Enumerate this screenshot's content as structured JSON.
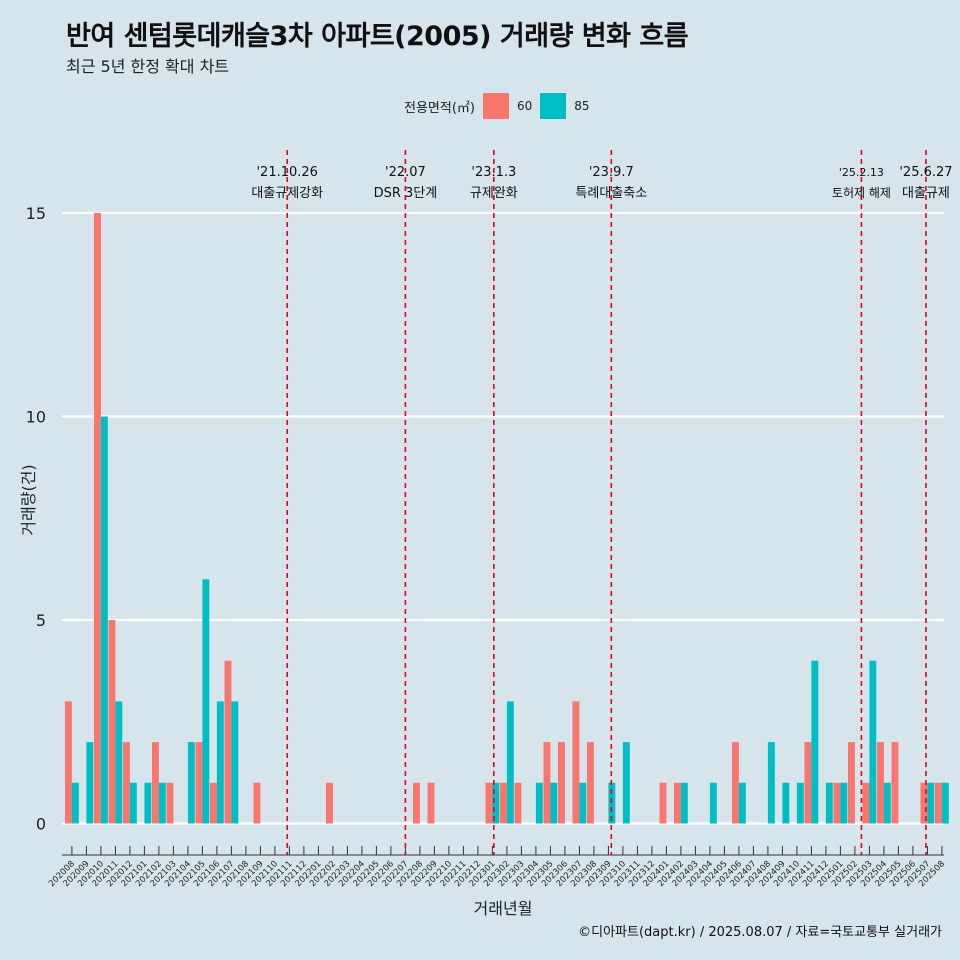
{
  "header": {
    "title": "반여 센텀롯데캐슬3차 아파트(2005) 거래량 변화 흐름",
    "subtitle": "최근 5년 한정 확대 차트"
  },
  "legend": {
    "title": "전용면적(㎡)",
    "items": [
      {
        "label": "60",
        "color": "#F8766D"
      },
      {
        "label": "85",
        "color": "#00BFC4"
      }
    ]
  },
  "footer": {
    "credit": "©디아파트(dapt.kr) / 2025.08.07 / 자료=국토교통부 실거래가"
  },
  "chart_data": {
    "type": "bar",
    "title": "반여 센텀롯데캐슬3차 아파트(2005) 거래량 변화 흐름",
    "xlabel": "거래년월",
    "ylabel": "거래량(건)",
    "ylim": [
      0,
      15
    ],
    "yticks": [
      0,
      5,
      10,
      15
    ],
    "categories": [
      "202008",
      "202009",
      "202010",
      "202011",
      "202012",
      "202101",
      "202102",
      "202103",
      "202104",
      "202105",
      "202106",
      "202107",
      "202108",
      "202109",
      "202110",
      "202111",
      "202112",
      "202201",
      "202202",
      "202203",
      "202204",
      "202205",
      "202206",
      "202207",
      "202208",
      "202209",
      "202210",
      "202211",
      "202212",
      "202301",
      "202302",
      "202303",
      "202304",
      "202305",
      "202306",
      "202307",
      "202308",
      "202309",
      "202310",
      "202311",
      "202312",
      "202401",
      "202402",
      "202403",
      "202404",
      "202405",
      "202406",
      "202407",
      "202408",
      "202409",
      "202410",
      "202411",
      "202412",
      "202501",
      "202502",
      "202503",
      "202504",
      "202505",
      "202506",
      "202507",
      "202508"
    ],
    "series": [
      {
        "name": "60",
        "color": "#F8766D",
        "values": [
          3,
          0,
          15,
          5,
          2,
          0,
          2,
          1,
          0,
          2,
          1,
          4,
          0,
          1,
          0,
          0,
          0,
          0,
          1,
          0,
          0,
          0,
          0,
          0,
          1,
          1,
          0,
          0,
          0,
          1,
          1,
          1,
          0,
          2,
          2,
          3,
          2,
          0,
          0,
          0,
          0,
          1,
          1,
          0,
          0,
          0,
          2,
          0,
          0,
          0,
          0,
          2,
          0,
          1,
          2,
          1,
          2,
          2,
          0,
          1,
          1
        ]
      },
      {
        "name": "85",
        "color": "#00BFC4",
        "values": [
          1,
          2,
          10,
          3,
          1,
          1,
          1,
          0,
          2,
          6,
          3,
          3,
          0,
          0,
          0,
          0,
          0,
          0,
          0,
          0,
          0,
          0,
          0,
          0,
          0,
          0,
          0,
          0,
          0,
          1,
          3,
          0,
          1,
          1,
          0,
          1,
          0,
          1,
          2,
          0,
          0,
          0,
          1,
          0,
          1,
          0,
          1,
          0,
          2,
          1,
          1,
          4,
          1,
          1,
          0,
          4,
          1,
          0,
          0,
          1,
          1
        ]
      }
    ],
    "events": [
      {
        "date": "'21.10.26",
        "label": "대출규제강화",
        "month": "202110",
        "offset": 0.85
      },
      {
        "date": "'22.07",
        "label": "DSR 3단계",
        "month": "202207",
        "offset": 0.0
      },
      {
        "date": "'23.1.3",
        "label": "규제완화",
        "month": "202301",
        "offset": 0.1
      },
      {
        "date": "'23.9.7",
        "label": "특례대출축소",
        "month": "202309",
        "offset": 0.2
      },
      {
        "date": "'25.2.13",
        "label": "토허제 해제",
        "month": "202502",
        "offset": 0.45
      },
      {
        "date": "'25.6.27",
        "label": "대출규제",
        "month": "202506",
        "offset": 0.9
      }
    ]
  }
}
